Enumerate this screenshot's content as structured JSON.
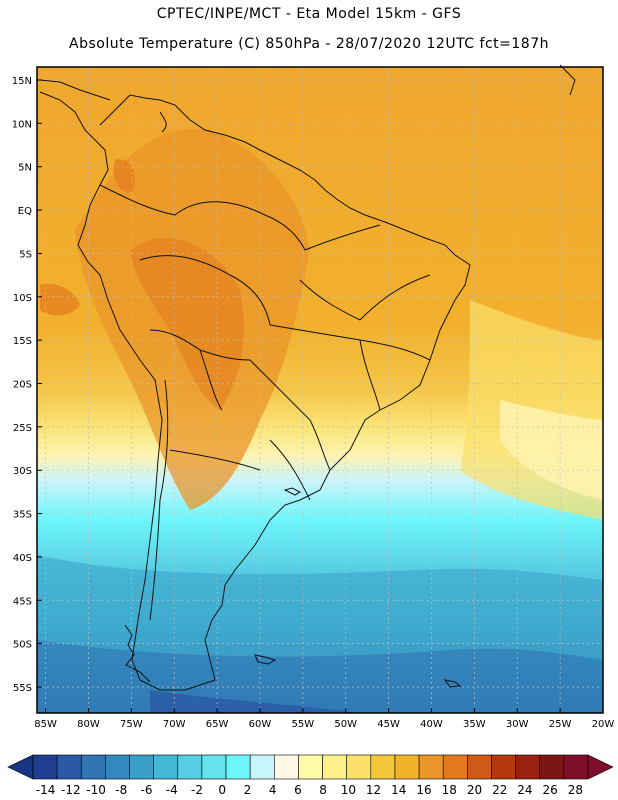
{
  "header": {
    "line1": "CPTEC/INPE/MCT -   Eta Model 15km - GFS",
    "line2": "Absolute Temperature (C) 850hPa - 28/07/2020 12UTC fct=187h"
  },
  "map": {
    "region": "South America",
    "lat_labels": [
      "15N",
      "10N",
      "5N",
      "EQ",
      "5S",
      "10S",
      "15S",
      "20S",
      "25S",
      "30S",
      "35S",
      "40S",
      "45S",
      "50S",
      "55S"
    ],
    "lon_labels": [
      "85W",
      "80W",
      "75W",
      "70W",
      "65W",
      "60W",
      "55W",
      "50W",
      "45W",
      "40W",
      "35W",
      "30W",
      "25W",
      "20W"
    ],
    "lat_range": [
      16.5,
      -58
    ],
    "lon_range": [
      -86,
      -20
    ]
  },
  "colorbar": {
    "labels": [
      "-14",
      "-12",
      "-10",
      "-8",
      "-6",
      "-4",
      "-2",
      "0",
      "2",
      "4",
      "6",
      "8",
      "10",
      "12",
      "14",
      "16",
      "18",
      "20",
      "22",
      "24",
      "26",
      "28"
    ],
    "colors": [
      "#1f3e8f",
      "#2a5aa5",
      "#2f74b3",
      "#3388be",
      "#3aa0c8",
      "#45b7d6",
      "#57cde3",
      "#65e3ee",
      "#6ef6fa",
      "#c8f4fb",
      "#fff8e6",
      "#fefba8",
      "#fdf08c",
      "#fbe06a",
      "#f3c63c",
      "#f2b12a",
      "#e9962a",
      "#e27a1d",
      "#cf5a17",
      "#b5390f",
      "#992111",
      "#7a1514",
      "#7d0e2a"
    ]
  }
}
